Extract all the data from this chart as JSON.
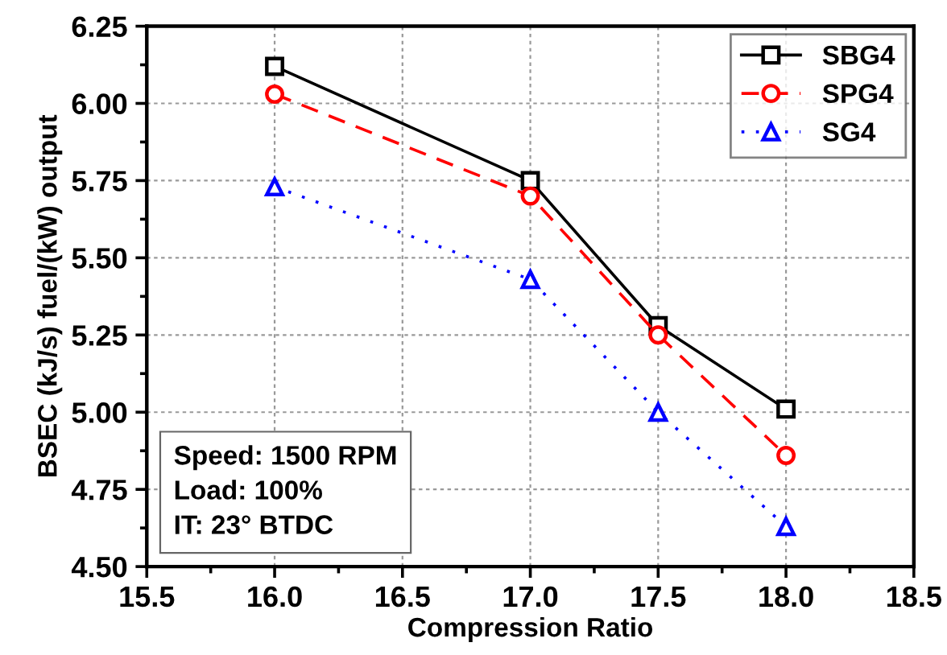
{
  "chart_data": {
    "type": "line",
    "xlabel": "Compression Ratio",
    "ylabel": "BSEC (kJ/s) fuel/(kW) output",
    "x": [
      16.0,
      17.0,
      17.5,
      18.0
    ],
    "series": [
      {
        "name": "SBG4",
        "color": "#000000",
        "values": [
          6.12,
          5.75,
          5.28,
          5.01
        ],
        "marker": "square",
        "line_style": "solid"
      },
      {
        "name": "SPG4",
        "color": "#ff0000",
        "values": [
          6.03,
          5.7,
          5.25,
          4.86
        ],
        "marker": "circle",
        "line_style": "dashed"
      },
      {
        "name": "SG4",
        "color": "#0000ff",
        "values": [
          5.73,
          5.43,
          5.0,
          4.63
        ],
        "marker": "triangle",
        "line_style": "dotted"
      }
    ],
    "xlim": [
      15.5,
      18.5
    ],
    "xticks": [
      {
        "value": 15.5,
        "label": "15.5"
      },
      {
        "value": 16.0,
        "label": "16.0"
      },
      {
        "value": 16.5,
        "label": "16.5"
      },
      {
        "value": 17.0,
        "label": "17.0"
      },
      {
        "value": 17.5,
        "label": "17.5"
      },
      {
        "value": 18.0,
        "label": "18.0"
      },
      {
        "value": 18.5,
        "label": "18.5"
      }
    ],
    "ylim": [
      4.5,
      6.25
    ],
    "yticks": [
      {
        "value": 4.5,
        "label": "4.50"
      },
      {
        "value": 4.75,
        "label": "4.75"
      },
      {
        "value": 5.0,
        "label": "5.00"
      },
      {
        "value": 5.25,
        "label": "5.25"
      },
      {
        "value": 5.5,
        "label": "5.50"
      },
      {
        "value": 5.75,
        "label": "5.75"
      },
      {
        "value": 6.0,
        "label": "6.00"
      },
      {
        "value": 6.25,
        "label": "6.25"
      }
    ],
    "grid": true,
    "legend": "top right",
    "annotations": [
      "Speed: 1500 RPM\nLoad: 100%\nIT: 23° BTDC"
    ]
  }
}
